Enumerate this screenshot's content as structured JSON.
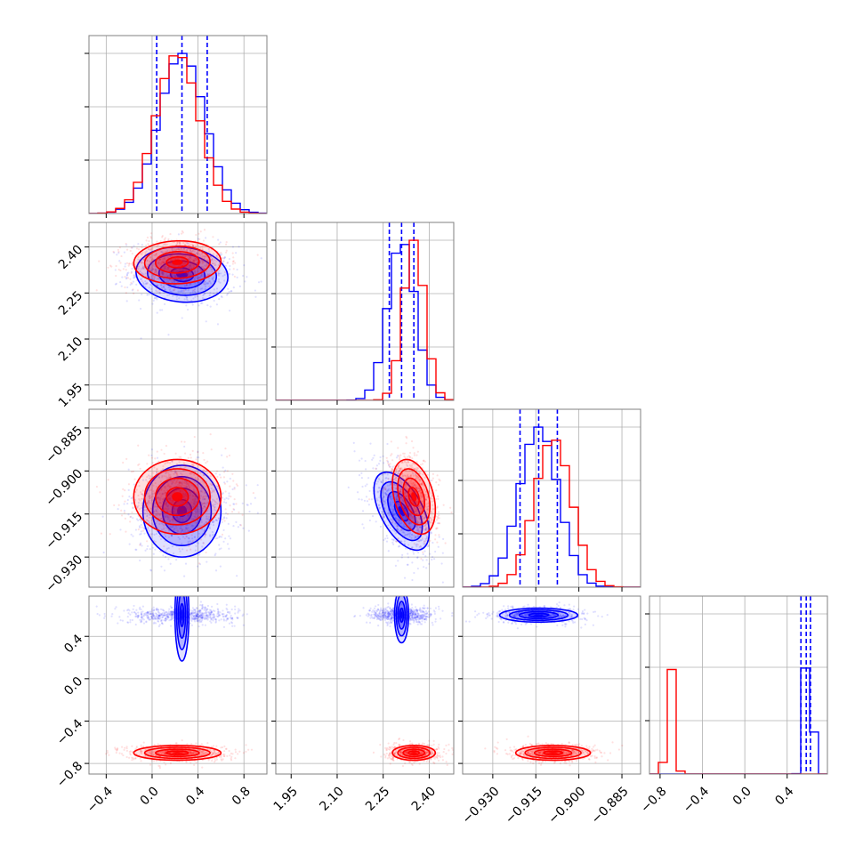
{
  "colors": {
    "series_a": "#0000ff",
    "series_b": "#ff0000",
    "grid": "#b0b0b0",
    "frame": "#808080"
  },
  "chart_data": {
    "type": "corner",
    "grid": true,
    "parameters": [
      {
        "range": [
          -0.55,
          1.0
        ],
        "ticks": [
          -0.4,
          0.0,
          0.4,
          0.8
        ],
        "tick_labels": [
          "−0.4",
          "0.0",
          "0.4",
          "0.8"
        ]
      },
      {
        "range": [
          1.9,
          2.48
        ],
        "ticks": [
          1.95,
          2.1,
          2.25,
          2.4
        ],
        "tick_labels": [
          "1.95",
          "2.10",
          "2.25",
          "2.40"
        ]
      },
      {
        "range": [
          -0.9405,
          -0.8785
        ],
        "ticks": [
          -0.93,
          -0.915,
          -0.9,
          -0.885
        ],
        "tick_labels": [
          "−0.930",
          "−0.915",
          "−0.900",
          "−0.885"
        ]
      },
      {
        "range": [
          -0.9,
          0.78
        ],
        "ticks": [
          -0.8,
          -0.4,
          0.0,
          0.4
        ],
        "tick_labels": [
          "−0.8",
          "−0.4",
          "0.0",
          "0.4"
        ]
      }
    ],
    "series": [
      {
        "color": "#0000ff",
        "params": [
          {
            "mean": 0.26,
            "sd": 0.2,
            "quantiles": [
              0.04,
              0.26,
              0.48
            ]
          },
          {
            "mean": 2.31,
            "sd": 0.045,
            "quantiles": [
              2.27,
              2.31,
              2.35
            ]
          },
          {
            "mean": -0.914,
            "sd": 0.0068,
            "quantiles": [
              -0.9205,
              -0.914,
              -0.9075
            ]
          },
          {
            "mean": 0.6,
            "sd": 0.033,
            "quantiles": [
              0.53,
              0.58,
              0.62
            ]
          }
        ],
        "correlations": [
          [
            0,
            1,
            -0.1
          ],
          [
            1,
            2,
            -0.55
          ],
          [
            0,
            2,
            0.0
          ]
        ],
        "hist_max_scale": [
          1.0,
          1.0,
          1.0,
          1.0
        ]
      },
      {
        "color": "#ff0000",
        "params": [
          {
            "mean": 0.22,
            "sd": 0.19
          },
          {
            "mean": 2.35,
            "sd": 0.035
          },
          {
            "mean": -0.909,
            "sd": 0.0065
          },
          {
            "mean": -0.7,
            "sd": 0.035
          }
        ],
        "correlations": [
          [
            0,
            1,
            0.05
          ],
          [
            1,
            2,
            -0.35
          ],
          [
            0,
            2,
            0.0
          ]
        ],
        "hist_max_scale": [
          1.0,
          1.0,
          0.93,
          0.68
        ]
      }
    ]
  }
}
